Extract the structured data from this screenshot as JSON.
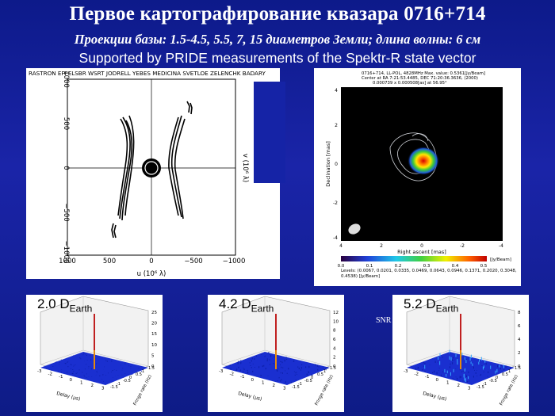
{
  "header": {
    "title": "Первое картографирование квазара 0716+714",
    "subtitle": "Проекции базы: 1.5-4.5, 5.5, 7, 15 диаметров Земли; длина волны: 6 см",
    "support_line": "Supported by PRIDE measurements of the Spektr-R state vector"
  },
  "uv_plot": {
    "stations": "RASTRON  EFFELSBR  WSRT  JODRELL  YEBES  MEDICINA  SVETLOE  ZELENCHK  BADARY",
    "xlabel": "u  (10⁶ λ)",
    "ylabel": "v  (10⁶ λ)",
    "x_ticks": [
      "1000",
      "500",
      "0",
      "−500",
      "−1000"
    ],
    "y_ticks": [
      "1000",
      "500",
      "0",
      "−500",
      "−1000"
    ]
  },
  "map_plot": {
    "header_lines": [
      "0716+714, LL-POL, 4828MHz Max. value: 0.5361[Jy/Beam]",
      "Center at RA 7:21:53.4485, DEC 71:20:36.3636, (2000)",
      "0.000739 x 0.000508[as] at 56.95°"
    ],
    "xlabel": "Right ascent [mas]",
    "ylabel": "Declination [mas]",
    "x_ticks": [
      "4",
      "2",
      "0",
      "-2",
      "-4"
    ],
    "y_ticks": [
      "4",
      "2",
      "0",
      "-2",
      "-4"
    ],
    "colorbar_ticks": [
      "0.0",
      "0.1",
      "0.2",
      "0.3",
      "0.4",
      "0.5"
    ],
    "colorbar_unit": "[Jy/Beam]",
    "levels_text": "Levels: (0.0067, 0.0201, 0.0335, 0.0469, 0.0643, 0.0946, 0.1371, 0.2020, 0.3048, 0.4538) [Jy/Beam]"
  },
  "fringe_plots": [
    {
      "label_main": "2.0 D",
      "label_sub": "Earth",
      "z_ticks": [
        "25",
        "20",
        "15",
        "10",
        "5",
        "0"
      ],
      "peak": 25
    },
    {
      "label_main": "4.2 D",
      "label_sub": "Earth",
      "z_ticks": [
        "12",
        "10",
        "8",
        "6",
        "4",
        "2",
        "0"
      ],
      "peak": 12
    },
    {
      "label_main": "5.2 D",
      "label_sub": "Earth",
      "z_ticks": [
        "8",
        "6",
        "4",
        "2",
        "0"
      ],
      "peak": 8
    }
  ],
  "fringe_axes": {
    "xlabel": "Delay (μs)",
    "ylabel": "Fringe rate (Hz)",
    "x_ticks": [
      "-3",
      "-2",
      "-1",
      "0",
      "1",
      "2",
      "3"
    ],
    "y_ticks": [
      "-1.5",
      "-1",
      "-0.5",
      "0",
      "0.5",
      "1",
      "1.5"
    ]
  },
  "snr_label": "SNR"
}
